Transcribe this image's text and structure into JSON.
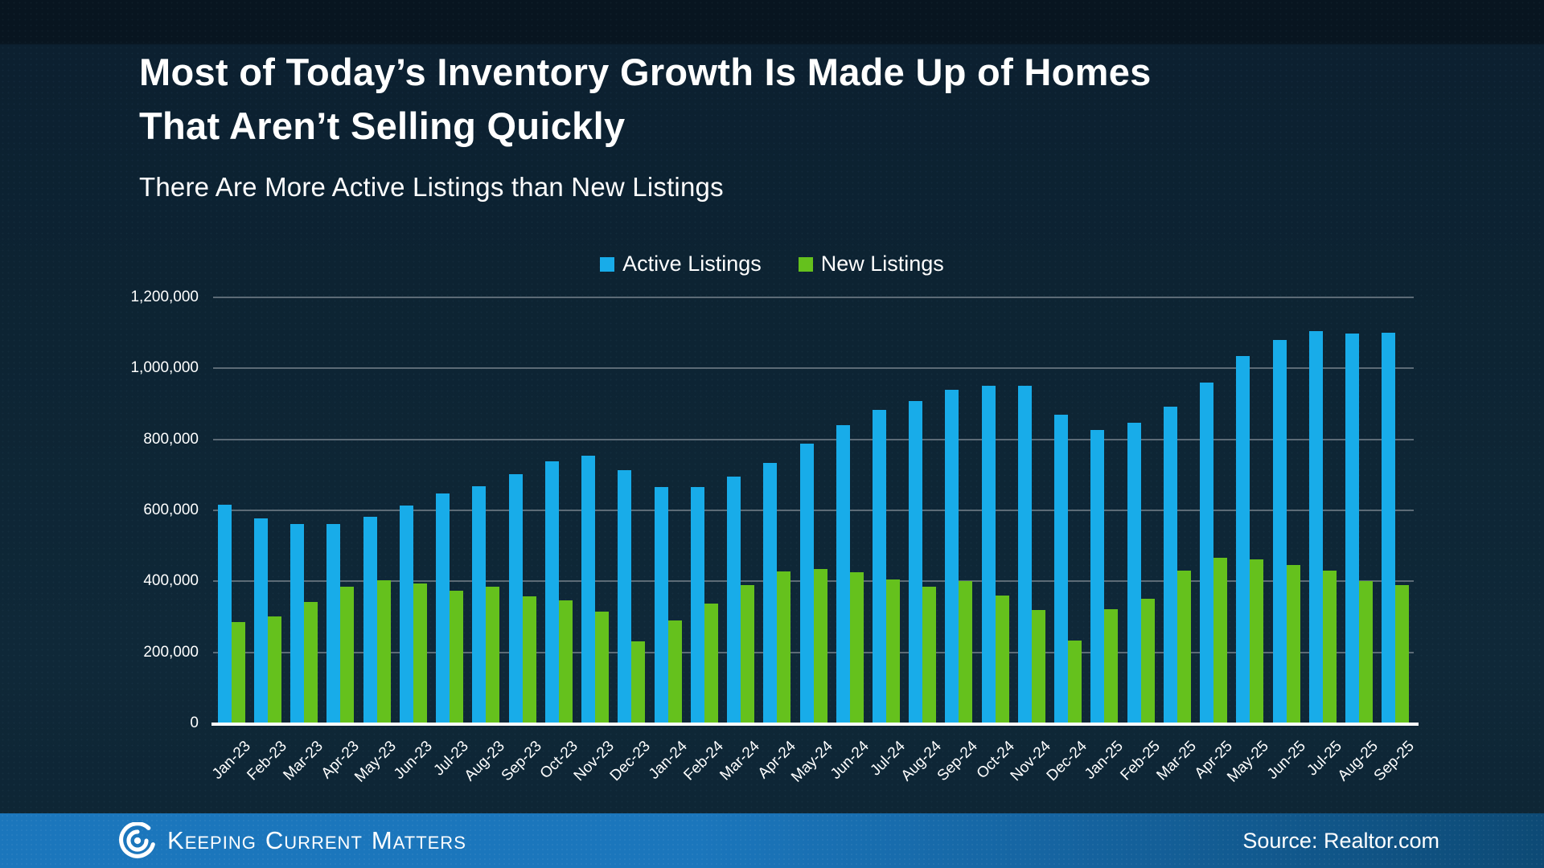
{
  "page": {
    "title_line1": "Most of Today’s Inventory Growth Is Made Up of Homes",
    "title_line2": "That Aren’t Selling Quickly",
    "subtitle": "There Are More Active Listings than New Listings"
  },
  "legend": {
    "items": [
      {
        "label": "Active Listings",
        "color": "#18ace9"
      },
      {
        "label": "New Listings",
        "color": "#65c11d"
      }
    ]
  },
  "footer": {
    "brand_words": [
      "Keeping",
      "Current",
      "Matters"
    ],
    "source": "Source: Realtor.com",
    "bar_color": "#1b76bc"
  },
  "chart_data": {
    "type": "bar",
    "title": "There Are More Active Listings than New Listings",
    "xlabel": "",
    "ylabel": "",
    "ylim": [
      0,
      1200000
    ],
    "y_ticks": [
      "0",
      "200,000",
      "400,000",
      "600,000",
      "800,000",
      "1,000,000",
      "1,200,000"
    ],
    "grid": "horizontal",
    "legend_position": "top",
    "background_color": "#0d2433",
    "gridline_color": "#5c6b76",
    "categories": [
      "Jan-23",
      "Feb-23",
      "Mar-23",
      "Apr-23",
      "May-23",
      "Jun-23",
      "Jul-23",
      "Aug-23",
      "Sep-23",
      "Oct-23",
      "Nov-23",
      "Dec-23",
      "Jan-24",
      "Feb-24",
      "Mar-24",
      "Apr-24",
      "May-24",
      "Jun-24",
      "Jul-24",
      "Aug-24",
      "Sep-24",
      "Oct-24",
      "Nov-24",
      "Dec-24",
      "Jan-25",
      "Feb-25",
      "Mar-25",
      "Apr-25",
      "May-25",
      "Jun-25",
      "Jul-25",
      "Aug-25",
      "Sep-25"
    ],
    "series": [
      {
        "name": "Active Listings",
        "color": "#18ace9",
        "values": [
          616000,
          578000,
          562000,
          561000,
          582000,
          614000,
          647000,
          669000,
          701000,
          738000,
          754000,
          714000,
          666000,
          665000,
          695000,
          734000,
          788000,
          841000,
          884000,
          909000,
          940000,
          952000,
          950000,
          869000,
          827000,
          846000,
          892000,
          959000,
          1035000,
          1081000,
          1104000,
          1098000,
          1100000
        ]
      },
      {
        "name": "New Listings",
        "color": "#65c11d",
        "values": [
          286000,
          302000,
          341000,
          385000,
          404000,
          394000,
          374000,
          386000,
          358000,
          346000,
          315000,
          232000,
          290000,
          337000,
          390000,
          428000,
          435000,
          426000,
          406000,
          385000,
          401000,
          360000,
          320000,
          233000,
          322000,
          350000,
          430000,
          467000,
          462000,
          447000,
          430000,
          400000,
          389000
        ]
      }
    ]
  }
}
